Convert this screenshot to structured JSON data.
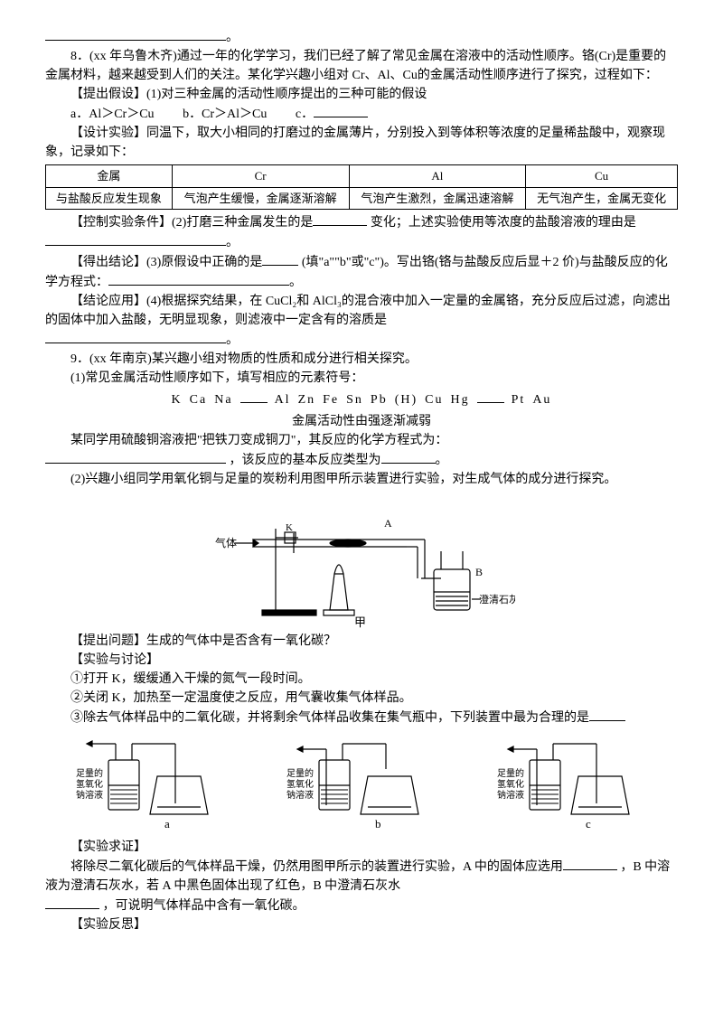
{
  "q8": {
    "intro": "8．(xx 年乌鲁木齐)通过一年的化学学习，我们已经了解了常见金属在溶液中的活动性顺序。铬(Cr)是重要的金属材料，越来越受到人们的关注。某化学兴趣小组对 Cr、Al、Cu的金属活动性顺序进行了探究，过程如下：",
    "hypo_label": "【提出假设】(1)对三种金属的活动性顺序提出的三种可能的假设",
    "hypo_a": "a．Al＞Cr＞Cu",
    "hypo_b": "b．Cr＞Al＞Cu",
    "hypo_c": "c．",
    "design": "【设计实验】同温下，取大小相同的打磨过的金属薄片，分别投入到等体积等浓度的足量稀盐酸中，观察现象，记录如下：",
    "table": {
      "h1": "金属",
      "h2": "Cr",
      "h3": "Al",
      "h4": "Cu",
      "r1": "与盐酸反应发生现象",
      "c1": "气泡产生缓慢，金属逐渐溶解",
      "c2": "气泡产生激烈，金属迅速溶解",
      "c3": "无气泡产生，金属无变化"
    },
    "control": "【控制实验条件】(2)打磨三种金属发生的是",
    "control2": "变化；上述实验使用等浓度的盐酸溶液的理由是",
    "conclude": "【得出结论】(3)原假设中正确的是",
    "conclude2": "(填\"a\"\"b\"或\"c\")。写出铬(铬与盐酸反应后显＋2 价)与盐酸反应的化学方程式：",
    "apply": "【结论应用】(4)根据探究结果，在 CuCl₂和 AlCl₃的混合液中加入一定量的金属铬，充分反应后过滤，向滤出的固体中加入盐酸，无明显现象，则滤液中一定含有的溶质是"
  },
  "q9": {
    "intro": "9．(xx 年南京)某兴趣小组对物质的性质和成分进行相关探究。",
    "p1": "(1)常见金属活动性顺序如下，填写相应的元素符号：",
    "activity": [
      "K",
      "Ca",
      "Na",
      "",
      "Al",
      "Zn",
      "Fe",
      "Sn",
      "Pb",
      "(H)",
      "Cu",
      "Hg",
      "",
      "Pt",
      "Au"
    ],
    "activity_caption": "金属活动性由强逐渐减弱",
    "p1b": "某同学用硫酸铜溶液把\"把铁刀变成铜刀\"，其反应的化学方程式为：",
    "p1c": "，该反应的基本反应类型为",
    "p2": "(2)兴趣小组同学用氧化铜与足量的炭粉利用图甲所示装置进行实验，对生成气体的成分进行探究。",
    "ask": "【提出问题】生成的气体中是否含有一氧化碳？",
    "disc": "【实验与讨论】",
    "step1": "①打开 K，缓缓通入干燥的氮气一段时间。",
    "step2": "②关闭 K，加热至一定温度使之反应，用气囊收集气体样品。",
    "step3": "③除去气体样品中的二氧化碳，并将剩余气体样品收集在集气瓶中，下列装置中最为合理的是",
    "verify": "【实验求证】",
    "verify_text1": "将除尽二氧化碳后的气体样品干燥，仍然用图甲所示的装置进行实验，A 中的固体应选用",
    "verify_text2": "，B 中溶液为澄清石灰水，若 A 中黑色固体出现了红色，B 中澄清石灰水",
    "verify_text3": "，可说明气体样品中含有一氧化碳。",
    "reflect": "【实验反思】"
  },
  "apparatus": {
    "gas_label": "气体",
    "A": "A",
    "B": "B",
    "lime": "澄清石灰水",
    "jia": "甲",
    "naoh": "足量的\n氢氧化\n钠溶液",
    "a": "a",
    "b": "b",
    "c": "c"
  },
  "colors": {
    "line": "#000",
    "bg": "#fff"
  }
}
